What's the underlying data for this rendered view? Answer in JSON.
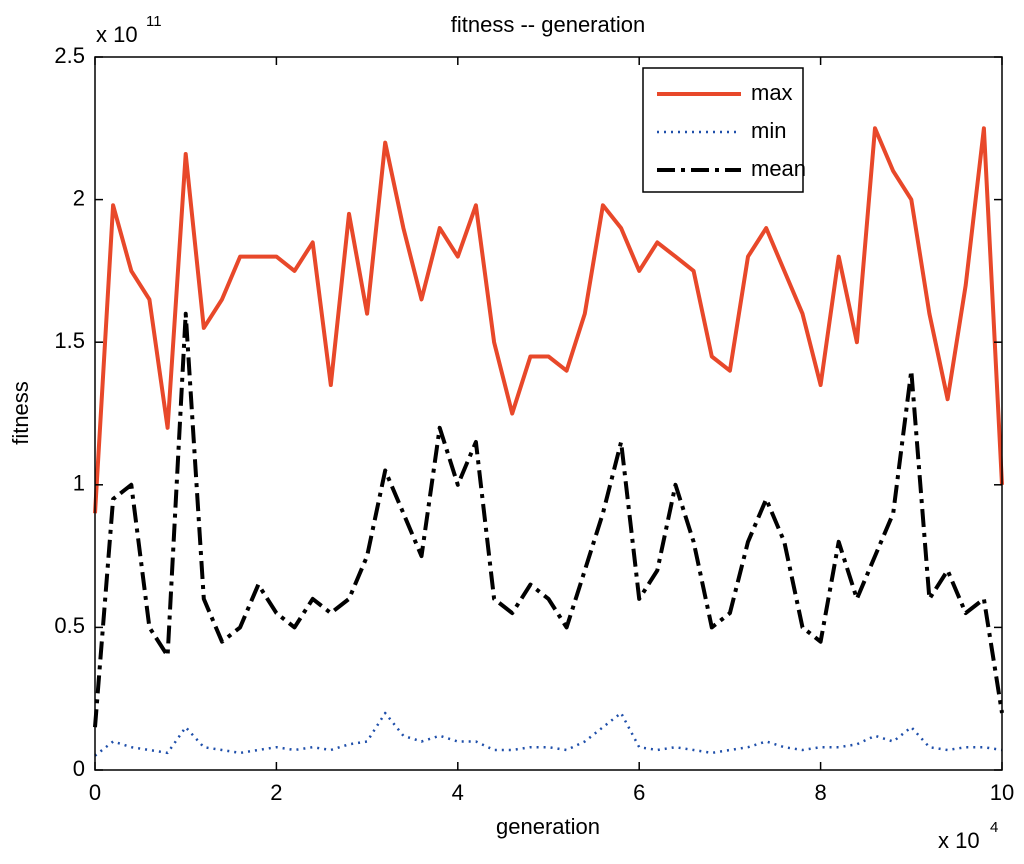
{
  "chart_data": {
    "type": "line",
    "title": "fitness -- generation",
    "x_label": "generation",
    "y_label": "fitness",
    "x_multiplier": {
      "text": "x 10",
      "exponent": "4"
    },
    "y_multiplier": {
      "text": "x 10",
      "exponent": "11"
    },
    "x": [
      0,
      0.2,
      0.4,
      0.6,
      0.8,
      1.0,
      1.2,
      1.4,
      1.6,
      1.8,
      2.0,
      2.2,
      2.4,
      2.6,
      2.8,
      3.0,
      3.2,
      3.4,
      3.6,
      3.8,
      4.0,
      4.2,
      4.4,
      4.6,
      4.8,
      5.0,
      5.2,
      5.4,
      5.6,
      5.8,
      6.0,
      6.2,
      6.4,
      6.6,
      6.8,
      7.0,
      7.2,
      7.4,
      7.6,
      7.8,
      8.0,
      8.2,
      8.4,
      8.6,
      8.8,
      9.0,
      9.2,
      9.4,
      9.6,
      9.8,
      10.0
    ],
    "series": [
      {
        "name": "max",
        "color": "#e8482a",
        "style": "solid",
        "values": [
          0.9,
          1.98,
          1.75,
          1.65,
          1.2,
          2.16,
          1.55,
          1.65,
          1.8,
          1.8,
          1.8,
          1.75,
          1.85,
          1.35,
          1.95,
          1.6,
          2.2,
          1.9,
          1.65,
          1.9,
          1.8,
          1.98,
          1.5,
          1.25,
          1.45,
          1.45,
          1.4,
          1.6,
          1.98,
          1.9,
          1.75,
          1.85,
          1.8,
          1.75,
          1.45,
          1.4,
          1.8,
          1.9,
          1.75,
          1.6,
          1.35,
          1.8,
          1.5,
          2.25,
          2.1,
          2.0,
          1.6,
          1.3,
          1.7,
          2.25,
          1.0
        ]
      },
      {
        "name": "min",
        "color": "#1f4faa",
        "style": "dotted",
        "values": [
          0.05,
          0.1,
          0.08,
          0.07,
          0.06,
          0.15,
          0.08,
          0.07,
          0.06,
          0.07,
          0.08,
          0.07,
          0.08,
          0.07,
          0.09,
          0.1,
          0.2,
          0.12,
          0.1,
          0.12,
          0.1,
          0.1,
          0.07,
          0.07,
          0.08,
          0.08,
          0.07,
          0.1,
          0.15,
          0.2,
          0.08,
          0.07,
          0.08,
          0.07,
          0.06,
          0.07,
          0.08,
          0.1,
          0.08,
          0.07,
          0.08,
          0.08,
          0.09,
          0.12,
          0.1,
          0.15,
          0.08,
          0.07,
          0.08,
          0.08,
          0.07
        ]
      },
      {
        "name": "mean",
        "color": "#000000",
        "style": "dashdot",
        "values": [
          0.15,
          0.95,
          1.0,
          0.5,
          0.4,
          1.6,
          0.6,
          0.45,
          0.5,
          0.65,
          0.55,
          0.5,
          0.6,
          0.55,
          0.6,
          0.75,
          1.05,
          0.9,
          0.75,
          1.2,
          1.0,
          1.15,
          0.6,
          0.55,
          0.65,
          0.6,
          0.5,
          0.7,
          0.9,
          1.15,
          0.6,
          0.7,
          1.0,
          0.8,
          0.5,
          0.55,
          0.8,
          0.95,
          0.8,
          0.5,
          0.45,
          0.8,
          0.6,
          0.75,
          0.9,
          1.4,
          0.6,
          0.7,
          0.55,
          0.6,
          0.2
        ]
      }
    ],
    "xlim": [
      0,
      10
    ],
    "xticks": [
      0,
      2,
      4,
      6,
      8,
      10
    ],
    "ylim": [
      0,
      2.5
    ],
    "yticks": [
      0,
      0.5,
      1,
      1.5,
      2,
      2.5
    ],
    "legend": "upper right"
  }
}
